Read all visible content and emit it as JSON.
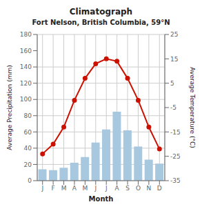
{
  "chart_data": {
    "type": "bar",
    "title": "Climatograph",
    "subtitle": "Fort Nelson, British Columbia, 59°N",
    "categories": [
      "J",
      "F",
      "M",
      "A",
      "M",
      "J",
      "J",
      "A",
      "S",
      "O",
      "N",
      "D"
    ],
    "series": [
      {
        "type": "bar",
        "color": "#a8c8e0",
        "values": [
          14,
          13,
          16,
          22,
          29,
          47,
          63,
          85,
          62,
          42,
          26,
          21
        ]
      },
      {
        "type": "line",
        "color": "#cc1100",
        "marker": "circle",
        "axis": "y2",
        "values": [
          -24,
          -20,
          -13,
          -2,
          7,
          13,
          15,
          14,
          7,
          -2,
          -13,
          -22
        ]
      }
    ],
    "xlabel": "Month",
    "ylabel": "Average Precipitation (mm)",
    "y2label": "Average Temperature (°C)",
    "ylim": [
      0,
      180
    ],
    "yticks": [
      0,
      20,
      40,
      60,
      80,
      100,
      120,
      140,
      160,
      180
    ],
    "y2lim": [
      -35,
      25
    ],
    "y2ticks": [
      -35,
      -25,
      -15,
      -5,
      5,
      15,
      25
    ],
    "grid": true
  }
}
